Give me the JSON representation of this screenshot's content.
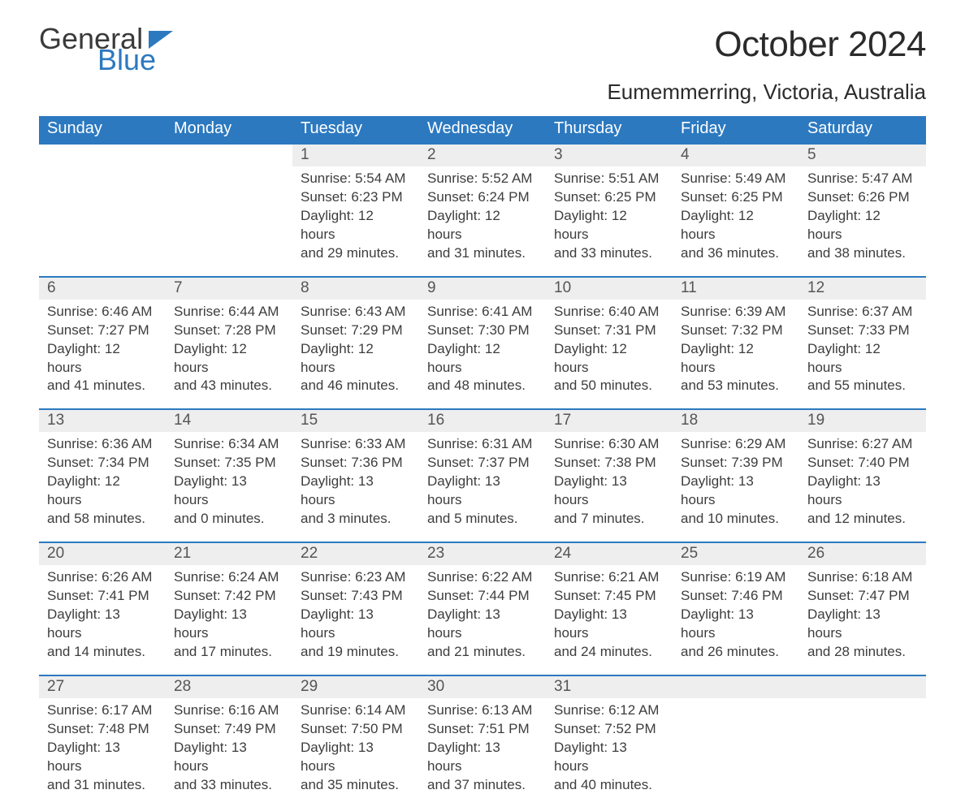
{
  "logo": {
    "general": "General",
    "blue": "Blue",
    "tri_color": "#2c79c0"
  },
  "title": "October 2024",
  "location": "Eumemmerring, Victoria, Australia",
  "colors": {
    "header_bg": "#2c79c0",
    "header_text": "#ffffff",
    "daynum_bg": "#eeeeee",
    "daynum_border": "#2c79c0",
    "text": "#3a3a3a",
    "page_bg": "#ffffff"
  },
  "typography": {
    "title_fontsize": 44,
    "location_fontsize": 26,
    "header_fontsize": 20,
    "daynum_fontsize": 19,
    "cell_fontsize": 17
  },
  "layout": {
    "columns": 7,
    "weeks": 5,
    "week_start": "Sunday"
  },
  "weekdays": [
    "Sunday",
    "Monday",
    "Tuesday",
    "Wednesday",
    "Thursday",
    "Friday",
    "Saturday"
  ],
  "weeks": [
    [
      null,
      null,
      {
        "n": "1",
        "sunrise": "Sunrise: 5:54 AM",
        "sunset": "Sunset: 6:23 PM",
        "day1": "Daylight: 12 hours",
        "day2": "and 29 minutes."
      },
      {
        "n": "2",
        "sunrise": "Sunrise: 5:52 AM",
        "sunset": "Sunset: 6:24 PM",
        "day1": "Daylight: 12 hours",
        "day2": "and 31 minutes."
      },
      {
        "n": "3",
        "sunrise": "Sunrise: 5:51 AM",
        "sunset": "Sunset: 6:25 PM",
        "day1": "Daylight: 12 hours",
        "day2": "and 33 minutes."
      },
      {
        "n": "4",
        "sunrise": "Sunrise: 5:49 AM",
        "sunset": "Sunset: 6:25 PM",
        "day1": "Daylight: 12 hours",
        "day2": "and 36 minutes."
      },
      {
        "n": "5",
        "sunrise": "Sunrise: 5:47 AM",
        "sunset": "Sunset: 6:26 PM",
        "day1": "Daylight: 12 hours",
        "day2": "and 38 minutes."
      }
    ],
    [
      {
        "n": "6",
        "sunrise": "Sunrise: 6:46 AM",
        "sunset": "Sunset: 7:27 PM",
        "day1": "Daylight: 12 hours",
        "day2": "and 41 minutes."
      },
      {
        "n": "7",
        "sunrise": "Sunrise: 6:44 AM",
        "sunset": "Sunset: 7:28 PM",
        "day1": "Daylight: 12 hours",
        "day2": "and 43 minutes."
      },
      {
        "n": "8",
        "sunrise": "Sunrise: 6:43 AM",
        "sunset": "Sunset: 7:29 PM",
        "day1": "Daylight: 12 hours",
        "day2": "and 46 minutes."
      },
      {
        "n": "9",
        "sunrise": "Sunrise: 6:41 AM",
        "sunset": "Sunset: 7:30 PM",
        "day1": "Daylight: 12 hours",
        "day2": "and 48 minutes."
      },
      {
        "n": "10",
        "sunrise": "Sunrise: 6:40 AM",
        "sunset": "Sunset: 7:31 PM",
        "day1": "Daylight: 12 hours",
        "day2": "and 50 minutes."
      },
      {
        "n": "11",
        "sunrise": "Sunrise: 6:39 AM",
        "sunset": "Sunset: 7:32 PM",
        "day1": "Daylight: 12 hours",
        "day2": "and 53 minutes."
      },
      {
        "n": "12",
        "sunrise": "Sunrise: 6:37 AM",
        "sunset": "Sunset: 7:33 PM",
        "day1": "Daylight: 12 hours",
        "day2": "and 55 minutes."
      }
    ],
    [
      {
        "n": "13",
        "sunrise": "Sunrise: 6:36 AM",
        "sunset": "Sunset: 7:34 PM",
        "day1": "Daylight: 12 hours",
        "day2": "and 58 minutes."
      },
      {
        "n": "14",
        "sunrise": "Sunrise: 6:34 AM",
        "sunset": "Sunset: 7:35 PM",
        "day1": "Daylight: 13 hours",
        "day2": "and 0 minutes."
      },
      {
        "n": "15",
        "sunrise": "Sunrise: 6:33 AM",
        "sunset": "Sunset: 7:36 PM",
        "day1": "Daylight: 13 hours",
        "day2": "and 3 minutes."
      },
      {
        "n": "16",
        "sunrise": "Sunrise: 6:31 AM",
        "sunset": "Sunset: 7:37 PM",
        "day1": "Daylight: 13 hours",
        "day2": "and 5 minutes."
      },
      {
        "n": "17",
        "sunrise": "Sunrise: 6:30 AM",
        "sunset": "Sunset: 7:38 PM",
        "day1": "Daylight: 13 hours",
        "day2": "and 7 minutes."
      },
      {
        "n": "18",
        "sunrise": "Sunrise: 6:29 AM",
        "sunset": "Sunset: 7:39 PM",
        "day1": "Daylight: 13 hours",
        "day2": "and 10 minutes."
      },
      {
        "n": "19",
        "sunrise": "Sunrise: 6:27 AM",
        "sunset": "Sunset: 7:40 PM",
        "day1": "Daylight: 13 hours",
        "day2": "and 12 minutes."
      }
    ],
    [
      {
        "n": "20",
        "sunrise": "Sunrise: 6:26 AM",
        "sunset": "Sunset: 7:41 PM",
        "day1": "Daylight: 13 hours",
        "day2": "and 14 minutes."
      },
      {
        "n": "21",
        "sunrise": "Sunrise: 6:24 AM",
        "sunset": "Sunset: 7:42 PM",
        "day1": "Daylight: 13 hours",
        "day2": "and 17 minutes."
      },
      {
        "n": "22",
        "sunrise": "Sunrise: 6:23 AM",
        "sunset": "Sunset: 7:43 PM",
        "day1": "Daylight: 13 hours",
        "day2": "and 19 minutes."
      },
      {
        "n": "23",
        "sunrise": "Sunrise: 6:22 AM",
        "sunset": "Sunset: 7:44 PM",
        "day1": "Daylight: 13 hours",
        "day2": "and 21 minutes."
      },
      {
        "n": "24",
        "sunrise": "Sunrise: 6:21 AM",
        "sunset": "Sunset: 7:45 PM",
        "day1": "Daylight: 13 hours",
        "day2": "and 24 minutes."
      },
      {
        "n": "25",
        "sunrise": "Sunrise: 6:19 AM",
        "sunset": "Sunset: 7:46 PM",
        "day1": "Daylight: 13 hours",
        "day2": "and 26 minutes."
      },
      {
        "n": "26",
        "sunrise": "Sunrise: 6:18 AM",
        "sunset": "Sunset: 7:47 PM",
        "day1": "Daylight: 13 hours",
        "day2": "and 28 minutes."
      }
    ],
    [
      {
        "n": "27",
        "sunrise": "Sunrise: 6:17 AM",
        "sunset": "Sunset: 7:48 PM",
        "day1": "Daylight: 13 hours",
        "day2": "and 31 minutes."
      },
      {
        "n": "28",
        "sunrise": "Sunrise: 6:16 AM",
        "sunset": "Sunset: 7:49 PM",
        "day1": "Daylight: 13 hours",
        "day2": "and 33 minutes."
      },
      {
        "n": "29",
        "sunrise": "Sunrise: 6:14 AM",
        "sunset": "Sunset: 7:50 PM",
        "day1": "Daylight: 13 hours",
        "day2": "and 35 minutes."
      },
      {
        "n": "30",
        "sunrise": "Sunrise: 6:13 AM",
        "sunset": "Sunset: 7:51 PM",
        "day1": "Daylight: 13 hours",
        "day2": "and 37 minutes."
      },
      {
        "n": "31",
        "sunrise": "Sunrise: 6:12 AM",
        "sunset": "Sunset: 7:52 PM",
        "day1": "Daylight: 13 hours",
        "day2": "and 40 minutes."
      },
      null,
      null
    ]
  ]
}
